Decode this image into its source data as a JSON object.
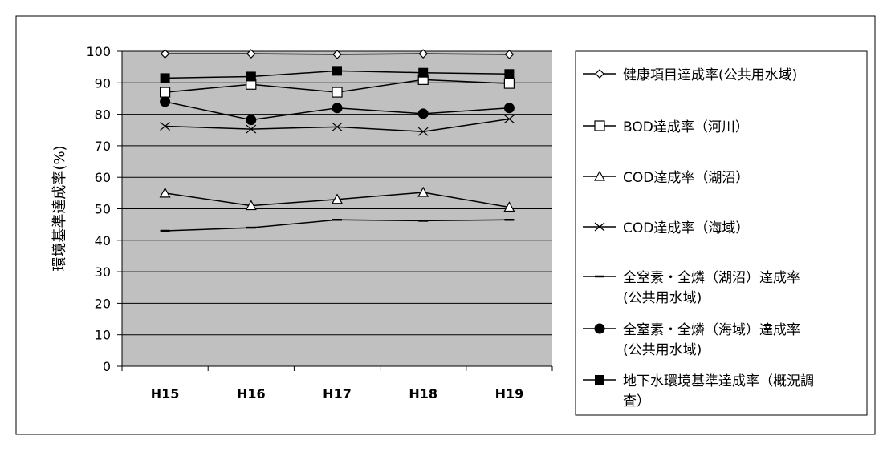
{
  "chart_data": {
    "type": "line",
    "title": "",
    "xlabel": "",
    "ylabel": "環境基準達成率(%)",
    "ylim": [
      0,
      100
    ],
    "ytick_step": 10,
    "grid": "horizontal",
    "plot_background": "#c0c0c0",
    "legend_position": "right",
    "categories": [
      "H15",
      "H16",
      "H17",
      "H18",
      "H19"
    ],
    "series": [
      {
        "name": "健康項目達成率(公共用水域)",
        "marker": "diamond-open",
        "values": [
          99.2,
          99.2,
          99.0,
          99.2,
          99.0
        ]
      },
      {
        "name": "BOD達成率（河川）",
        "marker": "square-open",
        "values": [
          87.0,
          89.5,
          87.0,
          91.0,
          89.8
        ]
      },
      {
        "name": "COD達成率（湖沼）",
        "marker": "triangle-open",
        "values": [
          55.0,
          51.0,
          53.0,
          55.2,
          50.5
        ]
      },
      {
        "name": "COD達成率（海域）",
        "marker": "x",
        "values": [
          76.2,
          75.3,
          76.0,
          74.5,
          78.5
        ]
      },
      {
        "name": "全窒素・全燐（湖沼）達成率(公共用水域)",
        "marker": "dash",
        "values": [
          43.0,
          44.0,
          46.5,
          46.2,
          46.5
        ]
      },
      {
        "name": "全窒素・全燐（海域）達成率(公共用水域)",
        "marker": "circle-filled",
        "values": [
          84.0,
          78.2,
          82.0,
          80.2,
          82.0
        ]
      },
      {
        "name": "地下水環境基準達成率（概況調査）",
        "marker": "square-filled",
        "values": [
          91.5,
          92.0,
          93.8,
          93.2,
          92.8
        ]
      }
    ]
  }
}
